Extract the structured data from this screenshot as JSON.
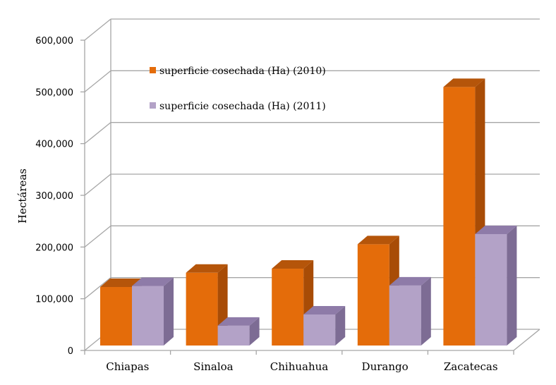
{
  "chart_data": {
    "type": "bar",
    "title": "",
    "xlabel": "",
    "ylabel": "Hectáreas",
    "ylim": [
      0,
      600000
    ],
    "yticks": [
      0,
      100000,
      200000,
      300000,
      400000,
      500000,
      600000
    ],
    "ytick_labels": [
      "0",
      "100,000",
      "200,000",
      "300,000",
      "400,000",
      "500,000",
      "600,000"
    ],
    "categories": [
      "Chiapas",
      "Sinaloa",
      "Chihuahua",
      "Durango",
      "Zacatecas"
    ],
    "series": [
      {
        "name": "superficie cosechada (Ha) (2010)",
        "values": [
          115000,
          143000,
          151000,
          199000,
          508000
        ]
      },
      {
        "name": "superficie cosechada (Ha) (2011)",
        "values": [
          117000,
          39000,
          61000,
          118000,
          219000
        ]
      }
    ],
    "grid": true,
    "legend": "top-left inside",
    "colors": {
      "series": [
        "#E46C0A",
        "#B3A2C7"
      ],
      "series_top": [
        "#B5550A",
        "#8E7BA8"
      ],
      "series_side": [
        "#A84C06",
        "#7D6C94"
      ],
      "grid": "#A6A6A6"
    }
  }
}
